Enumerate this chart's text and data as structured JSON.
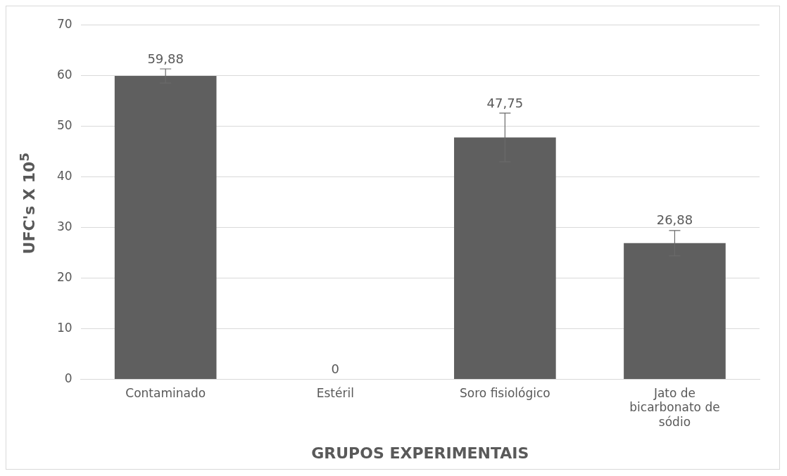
{
  "chart_data": {
    "type": "bar",
    "xlabel": "GRUPOS EXPERIMENTAIS",
    "ylabel": "UFC's X 10$^{5}$",
    "categories": [
      "Contaminado",
      "Estéril",
      "Soro fisiológico",
      "Jato de bicarbonato de sódio"
    ],
    "values": [
      59.88,
      0,
      47.75,
      26.88
    ],
    "value_labels": [
      "59,88",
      "0",
      "47,75",
      "26,88"
    ],
    "errors": [
      1.4,
      null,
      4.8,
      2.5
    ],
    "color": "#5f5f5f",
    "ylim": [
      0,
      70
    ],
    "yticks": [
      0,
      10,
      20,
      30,
      40,
      50,
      60,
      70
    ],
    "grid": "y",
    "legend": false
  }
}
